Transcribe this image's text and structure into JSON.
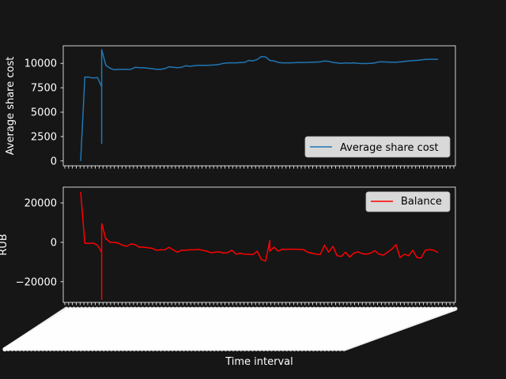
{
  "colors": {
    "background": "#161616",
    "axes_face": "#161616",
    "spine": "#ffffff",
    "text": "#ffffff",
    "legend_face": "#d9d9d9",
    "legend_text": "#000000"
  },
  "chart_data": [
    {
      "type": "line",
      "title": "",
      "xlabel": "",
      "ylabel": "Average share cost",
      "ylim": [
        -500,
        11800
      ],
      "yticks": [
        0,
        2500,
        5000,
        7500,
        10000
      ],
      "ytick_labels": [
        "0",
        "2500",
        "5000",
        "7500",
        "10000"
      ],
      "legend_position": "lower-right",
      "x_count": 103,
      "series": [
        {
          "name": "Average share cost",
          "color": "#1f77b4",
          "points": [
            [
              0,
              0
            ],
            [
              1,
              8600
            ],
            [
              2,
              8580
            ],
            [
              3,
              8500
            ],
            [
              4,
              8550
            ],
            [
              5,
              7600
            ],
            [
              5,
              1800
            ],
            [
              5,
              11400
            ],
            [
              6,
              9800
            ],
            [
              7,
              9500
            ],
            [
              8,
              9350
            ],
            [
              9,
              9380
            ],
            [
              10,
              9400
            ],
            [
              11,
              9380
            ],
            [
              12,
              9400
            ],
            [
              13,
              9600
            ],
            [
              14,
              9550
            ],
            [
              15,
              9550
            ],
            [
              16,
              9500
            ],
            [
              17,
              9450
            ],
            [
              18,
              9400
            ],
            [
              19,
              9400
            ],
            [
              20,
              9450
            ],
            [
              21,
              9650
            ],
            [
              22,
              9600
            ],
            [
              23,
              9550
            ],
            [
              24,
              9600
            ],
            [
              25,
              9750
            ],
            [
              26,
              9700
            ],
            [
              27,
              9750
            ],
            [
              28,
              9800
            ],
            [
              29,
              9800
            ],
            [
              30,
              9800
            ],
            [
              31,
              9820
            ],
            [
              32,
              9850
            ],
            [
              33,
              9900
            ],
            [
              34,
              10000
            ],
            [
              35,
              10050
            ],
            [
              36,
              10050
            ],
            [
              37,
              10050
            ],
            [
              38,
              10080
            ],
            [
              39,
              10100
            ],
            [
              40,
              10300
            ],
            [
              41,
              10250
            ],
            [
              42,
              10400
            ],
            [
              43,
              10700
            ],
            [
              44,
              10650
            ],
            [
              45,
              10300
            ],
            [
              46,
              10250
            ],
            [
              47,
              10100
            ],
            [
              48,
              10050
            ],
            [
              49,
              10050
            ],
            [
              50,
              10050
            ],
            [
              51,
              10070
            ],
            [
              52,
              10100
            ],
            [
              53,
              10080
            ],
            [
              54,
              10100
            ],
            [
              55,
              10120
            ],
            [
              56,
              10130
            ],
            [
              57,
              10150
            ],
            [
              58,
              10250
            ],
            [
              59,
              10200
            ],
            [
              60,
              10100
            ],
            [
              61,
              10050
            ],
            [
              62,
              10000
            ],
            [
              63,
              10050
            ],
            [
              64,
              10020
            ],
            [
              65,
              10050
            ],
            [
              66,
              10000
            ],
            [
              67,
              9980
            ],
            [
              68,
              9990
            ],
            [
              69,
              10000
            ],
            [
              70,
              10050
            ],
            [
              71,
              10150
            ],
            [
              72,
              10150
            ],
            [
              73,
              10130
            ],
            [
              74,
              10120
            ],
            [
              75,
              10110
            ],
            [
              76,
              10150
            ],
            [
              77,
              10200
            ],
            [
              78,
              10250
            ],
            [
              79,
              10280
            ],
            [
              80,
              10300
            ],
            [
              81,
              10350
            ],
            [
              82,
              10400
            ],
            [
              83,
              10420
            ],
            [
              84,
              10420
            ],
            [
              85,
              10420
            ]
          ]
        }
      ]
    },
    {
      "type": "line",
      "title": "",
      "xlabel": "Time interval",
      "ylabel": "RUB",
      "ylim": [
        -30500,
        28000
      ],
      "yticks": [
        -20000,
        0,
        20000
      ],
      "ytick_labels": [
        "−20000",
        "0",
        "20000"
      ],
      "legend_position": "upper-right",
      "x_count": 103,
      "series": [
        {
          "name": "Balance",
          "color": "#ff0000",
          "points": [
            [
              0,
              25500
            ],
            [
              1,
              -500
            ],
            [
              2,
              -500
            ],
            [
              3,
              -400
            ],
            [
              4,
              -1500
            ],
            [
              5,
              -5000
            ],
            [
              5,
              -29000
            ],
            [
              5,
              9500
            ],
            [
              6,
              1500
            ],
            [
              6,
              2000
            ],
            [
              7,
              0
            ],
            [
              8,
              0
            ],
            [
              9,
              -500
            ],
            [
              10,
              -1500
            ],
            [
              11,
              -2000
            ],
            [
              12,
              -800
            ],
            [
              13,
              -1200
            ],
            [
              14,
              -2500
            ],
            [
              15,
              -2400
            ],
            [
              16,
              -2800
            ],
            [
              17,
              -3000
            ],
            [
              18,
              -4000
            ],
            [
              19,
              -3800
            ],
            [
              20,
              -3800
            ],
            [
              21,
              -2500
            ],
            [
              22,
              -3800
            ],
            [
              23,
              -5000
            ],
            [
              24,
              -4000
            ],
            [
              25,
              -4000
            ],
            [
              26,
              -3800
            ],
            [
              27,
              -3800
            ],
            [
              28,
              -3600
            ],
            [
              29,
              -4000
            ],
            [
              30,
              -4500
            ],
            [
              31,
              -5300
            ],
            [
              32,
              -5000
            ],
            [
              33,
              -4800
            ],
            [
              34,
              -5500
            ],
            [
              35,
              -5200
            ],
            [
              36,
              -4000
            ],
            [
              37,
              -6000
            ],
            [
              38,
              -5600
            ],
            [
              39,
              -6000
            ],
            [
              40,
              -6100
            ],
            [
              41,
              -6200
            ],
            [
              42,
              -4500
            ],
            [
              43,
              -8800
            ],
            [
              44,
              -9500
            ],
            [
              45,
              1000
            ],
            [
              45,
              -4500
            ],
            [
              46,
              -2500
            ],
            [
              47,
              -4500
            ],
            [
              48,
              -3500
            ],
            [
              49,
              -3600
            ],
            [
              50,
              -3500
            ],
            [
              51,
              -3500
            ],
            [
              52,
              -3600
            ],
            [
              53,
              -3700
            ],
            [
              54,
              -5000
            ],
            [
              55,
              -5500
            ],
            [
              56,
              -6000
            ],
            [
              57,
              -6200
            ],
            [
              58,
              -1500
            ],
            [
              59,
              -5000
            ],
            [
              60,
              -2000
            ],
            [
              61,
              -6800
            ],
            [
              62,
              -7200
            ],
            [
              63,
              -5000
            ],
            [
              64,
              -7500
            ],
            [
              65,
              -5500
            ],
            [
              66,
              -4800
            ],
            [
              67,
              -5800
            ],
            [
              68,
              -6000
            ],
            [
              69,
              -5500
            ],
            [
              70,
              -4200
            ],
            [
              71,
              -6000
            ],
            [
              72,
              -6500
            ],
            [
              73,
              -5000
            ],
            [
              74,
              -3500
            ],
            [
              75,
              -1200
            ],
            [
              76,
              -7800
            ],
            [
              77,
              -6000
            ],
            [
              78,
              -6800
            ],
            [
              79,
              -4000
            ],
            [
              80,
              -7800
            ],
            [
              81,
              -8000
            ],
            [
              82,
              -4000
            ],
            [
              83,
              -3700
            ],
            [
              84,
              -4000
            ],
            [
              85,
              -5200
            ]
          ]
        }
      ]
    }
  ]
}
